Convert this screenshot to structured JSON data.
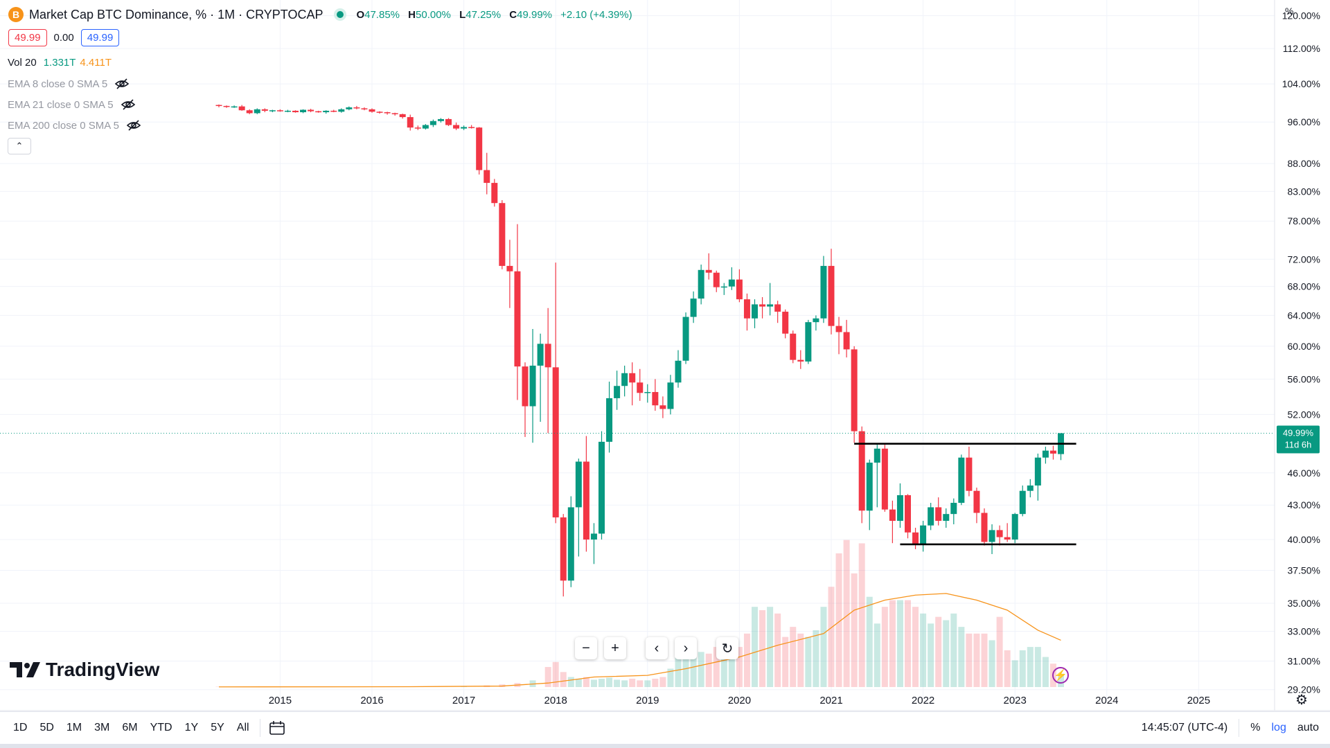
{
  "header": {
    "symbol_icon": "B",
    "symbol_title": "Market Cap BTC Dominance, % · 1M · CRYPTOCAP",
    "ohlc": {
      "o_label": "O",
      "o": "47.85%",
      "h_label": "H",
      "h": "50.00%",
      "l_label": "L",
      "l": "47.25%",
      "c_label": "C",
      "c": "49.99%",
      "change": "+2.10 (+4.39%)"
    },
    "bid": "49.99",
    "spread": "0.00",
    "ask": "49.99"
  },
  "indicators": {
    "vol": {
      "label": "Vol 20",
      "value_a": "1.331T",
      "value_b": "4.411T"
    },
    "ema8": "EMA 8 close 0 SMA 5",
    "ema21": "EMA 21 close 0 SMA 5",
    "ema200": "EMA 200 close 0 SMA 5"
  },
  "axis_unit": "%",
  "brand": "TradingView",
  "timeframes": [
    "1D",
    "5D",
    "1M",
    "3M",
    "6M",
    "YTD",
    "1Y",
    "5Y",
    "All"
  ],
  "clock": "14:45:07 (UTC-4)",
  "scale_buttons": {
    "percent": "%",
    "log": "log",
    "auto": "auto"
  },
  "icons": {
    "zoom_out": "−",
    "zoom_in": "+",
    "scroll_left": "‹",
    "scroll_right": "›",
    "reset": "↻",
    "collapse": "⌃",
    "settings": "⚙",
    "calendar": "🗓",
    "bolt": "⚡"
  },
  "colors": {
    "up": "#089981",
    "down": "#f23645",
    "ema": "#f7931a",
    "grid": "#f0f3fa"
  },
  "chart_data": {
    "type": "candlestick",
    "title": "Market Cap BTC Dominance",
    "interval": "1M",
    "scale": "log",
    "xlabel": "",
    "ylabel": "%",
    "x_ticks": [
      "2015",
      "2016",
      "2017",
      "2018",
      "2019",
      "2020",
      "2021",
      "2022",
      "2023",
      "2024",
      "2025"
    ],
    "y_ticks": [
      "120.00%",
      "112.00%",
      "104.00%",
      "96.00%",
      "88.00%",
      "83.00%",
      "78.00%",
      "72.00%",
      "68.00%",
      "64.00%",
      "60.00%",
      "56.00%",
      "52.00%",
      "46.00%",
      "43.00%",
      "40.00%",
      "37.50%",
      "35.00%",
      "33.00%",
      "31.00%",
      "29.20%"
    ],
    "ylim": [
      28.6,
      124
    ],
    "x_range": [
      "2014-04",
      "2025-12"
    ],
    "last_price_label": "49.99%",
    "countdown_label": "11d 6h",
    "last_price": 49.99,
    "resistance_level": 48.9,
    "support_level": 39.6,
    "candles": [
      [
        "2014-05",
        99.5,
        99.6,
        99.0,
        99.3
      ],
      [
        "2014-06",
        99.3,
        99.4,
        98.9,
        99.1
      ],
      [
        "2014-07",
        99.1,
        99.4,
        98.9,
        99.2
      ],
      [
        "2014-08",
        99.2,
        99.5,
        98.3,
        98.4
      ],
      [
        "2014-09",
        98.4,
        98.6,
        97.6,
        97.8
      ],
      [
        "2014-10",
        97.8,
        98.8,
        97.6,
        98.6
      ],
      [
        "2014-11",
        98.6,
        98.8,
        98.0,
        98.3
      ],
      [
        "2014-12",
        98.3,
        98.5,
        98.0,
        98.4
      ],
      [
        "2015-01",
        98.4,
        98.6,
        98.1,
        98.2
      ],
      [
        "2015-02",
        98.2,
        98.5,
        98.0,
        98.3
      ],
      [
        "2015-03",
        98.3,
        98.4,
        97.9,
        98.0
      ],
      [
        "2015-04",
        98.0,
        98.6,
        97.8,
        98.5
      ],
      [
        "2015-05",
        98.5,
        98.7,
        98.0,
        98.2
      ],
      [
        "2015-06",
        98.2,
        98.3,
        97.9,
        98.0
      ],
      [
        "2015-07",
        98.0,
        98.4,
        97.7,
        98.3
      ],
      [
        "2015-08",
        98.3,
        98.5,
        98.0,
        98.1
      ],
      [
        "2015-09",
        98.1,
        98.8,
        97.9,
        98.6
      ],
      [
        "2015-10",
        98.6,
        99.2,
        98.4,
        99.0
      ],
      [
        "2015-11",
        99.0,
        99.3,
        98.6,
        98.8
      ],
      [
        "2015-12",
        98.8,
        99.0,
        98.4,
        98.6
      ],
      [
        "2016-01",
        98.6,
        98.8,
        97.9,
        98.1
      ],
      [
        "2016-02",
        98.1,
        98.2,
        97.7,
        98.0
      ],
      [
        "2016-03",
        98.0,
        98.1,
        97.5,
        97.8
      ],
      [
        "2016-04",
        97.8,
        97.9,
        97.3,
        97.6
      ],
      [
        "2016-05",
        97.6,
        97.7,
        96.7,
        97.0
      ],
      [
        "2016-06",
        97.0,
        97.5,
        94.3,
        94.9
      ],
      [
        "2016-07",
        94.9,
        95.3,
        94.4,
        94.7
      ],
      [
        "2016-08",
        94.7,
        95.6,
        94.5,
        95.4
      ],
      [
        "2016-09",
        95.4,
        96.5,
        95.0,
        96.2
      ],
      [
        "2016-10",
        96.2,
        96.8,
        95.9,
        96.6
      ],
      [
        "2016-11",
        96.6,
        96.8,
        95.2,
        95.4
      ],
      [
        "2016-12",
        95.4,
        95.9,
        94.4,
        94.7
      ],
      [
        "2017-01",
        94.7,
        95.3,
        94.4,
        95.0
      ],
      [
        "2017-02",
        95.0,
        95.4,
        94.7,
        94.9
      ],
      [
        "2017-03",
        94.9,
        95.0,
        86.0,
        86.8
      ],
      [
        "2017-04",
        86.8,
        90.0,
        82.5,
        84.5
      ],
      [
        "2017-05",
        84.5,
        85.2,
        80.4,
        81.0
      ],
      [
        "2017-06",
        81.0,
        81.5,
        70.5,
        71.0
      ],
      [
        "2017-07",
        71.0,
        75.0,
        65.0,
        70.2
      ],
      [
        "2017-08",
        70.2,
        77.5,
        53.6,
        57.5
      ],
      [
        "2017-09",
        57.5,
        58.0,
        49.6,
        52.9
      ],
      [
        "2017-10",
        52.9,
        62.2,
        49.0,
        57.6
      ],
      [
        "2017-11",
        57.6,
        61.6,
        51.2,
        60.3
      ],
      [
        "2017-12",
        60.3,
        65.0,
        50.0,
        57.4
      ],
      [
        "2018-01",
        57.4,
        71.5,
        41.4,
        41.9
      ],
      [
        "2018-02",
        41.9,
        42.2,
        35.5,
        36.7
      ],
      [
        "2018-03",
        36.7,
        43.8,
        36.2,
        42.8
      ],
      [
        "2018-04",
        42.8,
        47.4,
        38.6,
        47.1
      ],
      [
        "2018-05",
        47.1,
        49.7,
        39.0,
        40.0
      ],
      [
        "2018-06",
        40.0,
        41.4,
        38.0,
        40.5
      ],
      [
        "2018-07",
        40.5,
        50.2,
        40.0,
        49.1
      ],
      [
        "2018-08",
        49.1,
        55.7,
        48.0,
        53.8
      ],
      [
        "2018-09",
        53.8,
        57.0,
        52.5,
        55.2
      ],
      [
        "2018-10",
        55.2,
        57.6,
        54.0,
        56.7
      ],
      [
        "2018-11",
        56.7,
        58.0,
        53.0,
        55.6
      ],
      [
        "2018-12",
        55.6,
        57.2,
        53.5,
        54.4
      ],
      [
        "2019-01",
        54.4,
        55.4,
        53.3,
        54.5
      ],
      [
        "2019-02",
        54.5,
        56.0,
        52.4,
        53.0
      ],
      [
        "2019-03",
        53.0,
        54.0,
        51.6,
        52.6
      ],
      [
        "2019-04",
        52.6,
        56.5,
        52.0,
        55.6
      ],
      [
        "2019-05",
        55.6,
        59.5,
        55.0,
        58.2
      ],
      [
        "2019-06",
        58.2,
        64.4,
        57.8,
        63.8
      ],
      [
        "2019-07",
        63.8,
        67.3,
        63.0,
        66.3
      ],
      [
        "2019-08",
        66.3,
        71.2,
        65.5,
        70.4
      ],
      [
        "2019-09",
        70.4,
        72.9,
        69.0,
        70.0
      ],
      [
        "2019-10",
        70.0,
        70.3,
        67.2,
        67.9
      ],
      [
        "2019-11",
        67.9,
        68.5,
        66.8,
        68.0
      ],
      [
        "2019-12",
        68.0,
        70.8,
        67.5,
        69.0
      ],
      [
        "2020-01",
        69.0,
        70.5,
        65.8,
        66.2
      ],
      [
        "2020-02",
        66.2,
        67.0,
        62.0,
        63.6
      ],
      [
        "2020-03",
        63.6,
        66.2,
        62.3,
        65.5
      ],
      [
        "2020-04",
        65.5,
        66.5,
        63.6,
        65.2
      ],
      [
        "2020-05",
        65.2,
        68.5,
        64.0,
        65.5
      ],
      [
        "2020-06",
        65.5,
        66.0,
        63.0,
        64.5
      ],
      [
        "2020-07",
        64.5,
        64.8,
        61.0,
        61.6
      ],
      [
        "2020-08",
        61.6,
        62.0,
        57.9,
        58.3
      ],
      [
        "2020-09",
        58.3,
        59.5,
        57.2,
        58.1
      ],
      [
        "2020-10",
        58.1,
        63.4,
        57.8,
        63.1
      ],
      [
        "2020-11",
        63.1,
        64.0,
        62.0,
        63.6
      ],
      [
        "2020-12",
        63.6,
        72.5,
        63.0,
        71.0
      ],
      [
        "2021-01",
        71.0,
        73.6,
        61.5,
        62.6
      ],
      [
        "2021-02",
        62.6,
        63.8,
        59.0,
        61.8
      ],
      [
        "2021-03",
        61.8,
        63.4,
        58.6,
        59.6
      ],
      [
        "2021-04",
        59.6,
        60.0,
        49.0,
        50.2
      ],
      [
        "2021-05",
        50.2,
        50.7,
        41.4,
        42.5
      ],
      [
        "2021-06",
        42.5,
        47.3,
        40.8,
        47.0
      ],
      [
        "2021-07",
        47.0,
        48.8,
        42.8,
        48.4
      ],
      [
        "2021-08",
        48.4,
        48.8,
        42.4,
        42.6
      ],
      [
        "2021-09",
        42.6,
        43.4,
        39.7,
        41.6
      ],
      [
        "2021-10",
        41.6,
        45.0,
        41.0,
        43.9
      ],
      [
        "2021-11",
        43.9,
        44.0,
        40.1,
        40.6
      ],
      [
        "2021-12",
        40.6,
        41.0,
        39.2,
        39.6
      ],
      [
        "2022-01",
        39.6,
        41.6,
        39.0,
        41.2
      ],
      [
        "2022-02",
        41.2,
        43.2,
        40.8,
        42.8
      ],
      [
        "2022-03",
        42.8,
        43.7,
        41.2,
        41.6
      ],
      [
        "2022-04",
        41.6,
        42.7,
        41.0,
        42.2
      ],
      [
        "2022-05",
        42.2,
        43.6,
        41.3,
        43.2
      ],
      [
        "2022-06",
        43.2,
        47.8,
        43.0,
        47.5
      ],
      [
        "2022-07",
        47.5,
        48.6,
        43.8,
        44.3
      ],
      [
        "2022-08",
        44.3,
        44.6,
        41.4,
        42.3
      ],
      [
        "2022-09",
        42.3,
        42.7,
        39.5,
        39.8
      ],
      [
        "2022-10",
        39.8,
        41.3,
        38.8,
        40.8
      ],
      [
        "2022-11",
        40.8,
        41.2,
        39.5,
        40.2
      ],
      [
        "2022-12",
        40.2,
        41.4,
        39.8,
        40.0
      ],
      [
        "2023-01",
        40.0,
        42.3,
        39.7,
        42.2
      ],
      [
        "2023-02",
        42.2,
        44.8,
        42.0,
        44.3
      ],
      [
        "2023-03",
        44.3,
        45.4,
        43.7,
        44.8
      ],
      [
        "2023-04",
        44.8,
        47.9,
        43.4,
        47.5
      ],
      [
        "2023-05",
        47.5,
        48.6,
        46.9,
        48.2
      ],
      [
        "2023-06",
        48.2,
        48.7,
        47.3,
        47.9
      ],
      [
        "2023-07",
        47.85,
        50.0,
        47.25,
        49.99
      ]
    ],
    "volume": [
      [
        "2014-05",
        0.01
      ],
      [
        "2014-09",
        0.01
      ],
      [
        "2015-01",
        0.01
      ],
      [
        "2015-06",
        0.01
      ],
      [
        "2016-01",
        0.02
      ],
      [
        "2016-06",
        0.02
      ],
      [
        "2017-01",
        0.03
      ],
      [
        "2017-04",
        0.05
      ],
      [
        "2017-06",
        0.08
      ],
      [
        "2017-08",
        0.12
      ],
      [
        "2017-10",
        0.2
      ],
      [
        "2017-12",
        0.6
      ],
      [
        "2018-01",
        0.75
      ],
      [
        "2018-02",
        0.45
      ],
      [
        "2018-03",
        0.3
      ],
      [
        "2018-04",
        0.25
      ],
      [
        "2018-05",
        0.3
      ],
      [
        "2018-06",
        0.22
      ],
      [
        "2018-07",
        0.25
      ],
      [
        "2018-08",
        0.28
      ],
      [
        "2018-09",
        0.22
      ],
      [
        "2018-10",
        0.2
      ],
      [
        "2018-11",
        0.25
      ],
      [
        "2018-12",
        0.2
      ],
      [
        "2019-01",
        0.2
      ],
      [
        "2019-02",
        0.25
      ],
      [
        "2019-03",
        0.3
      ],
      [
        "2019-04",
        0.55
      ],
      [
        "2019-05",
        0.9
      ],
      [
        "2019-06",
        1.2
      ],
      [
        "2019-07",
        1.3
      ],
      [
        "2019-08",
        1.05
      ],
      [
        "2019-09",
        1.0
      ],
      [
        "2019-10",
        1.2
      ],
      [
        "2019-11",
        1.0
      ],
      [
        "2019-12",
        0.95
      ],
      [
        "2020-01",
        1.2
      ],
      [
        "2020-02",
        1.6
      ],
      [
        "2020-03",
        2.4
      ],
      [
        "2020-04",
        2.3
      ],
      [
        "2020-05",
        2.4
      ],
      [
        "2020-06",
        2.2
      ],
      [
        "2020-07",
        1.5
      ],
      [
        "2020-08",
        1.8
      ],
      [
        "2020-09",
        1.6
      ],
      [
        "2020-10",
        1.5
      ],
      [
        "2020-11",
        1.7
      ],
      [
        "2020-12",
        2.4
      ],
      [
        "2021-01",
        3.0
      ],
      [
        "2021-02",
        4.0
      ],
      [
        "2021-03",
        4.4
      ],
      [
        "2021-04",
        3.4
      ],
      [
        "2021-05",
        4.3
      ],
      [
        "2021-06",
        2.7
      ],
      [
        "2021-07",
        1.9
      ],
      [
        "2021-08",
        2.4
      ],
      [
        "2021-09",
        2.6
      ],
      [
        "2021-10",
        2.6
      ],
      [
        "2021-11",
        2.6
      ],
      [
        "2021-12",
        2.4
      ],
      [
        "2022-01",
        2.2
      ],
      [
        "2022-02",
        1.9
      ],
      [
        "2022-03",
        2.1
      ],
      [
        "2022-04",
        2.0
      ],
      [
        "2022-05",
        2.2
      ],
      [
        "2022-06",
        1.8
      ],
      [
        "2022-07",
        1.6
      ],
      [
        "2022-08",
        1.6
      ],
      [
        "2022-09",
        1.6
      ],
      [
        "2022-10",
        1.4
      ],
      [
        "2022-11",
        2.1
      ],
      [
        "2022-12",
        1.1
      ],
      [
        "2023-01",
        0.8
      ],
      [
        "2023-02",
        1.1
      ],
      [
        "2023-03",
        1.2
      ],
      [
        "2023-04",
        1.2
      ],
      [
        "2023-05",
        0.9
      ],
      [
        "2023-06",
        0.7
      ],
      [
        "2023-07",
        0.4
      ]
    ],
    "volume_ma": [
      [
        "2014-05",
        0.005
      ],
      [
        "2016-06",
        0.01
      ],
      [
        "2017-06",
        0.03
      ],
      [
        "2017-12",
        0.12
      ],
      [
        "2018-06",
        0.3
      ],
      [
        "2019-01",
        0.35
      ],
      [
        "2019-06",
        0.55
      ],
      [
        "2020-01",
        0.9
      ],
      [
        "2020-06",
        1.25
      ],
      [
        "2020-12",
        1.6
      ],
      [
        "2021-04",
        2.3
      ],
      [
        "2021-08",
        2.6
      ],
      [
        "2021-12",
        2.75
      ],
      [
        "2022-04",
        2.8
      ],
      [
        "2022-08",
        2.6
      ],
      [
        "2022-12",
        2.3
      ],
      [
        "2023-04",
        1.7
      ],
      [
        "2023-07",
        1.4
      ]
    ]
  }
}
